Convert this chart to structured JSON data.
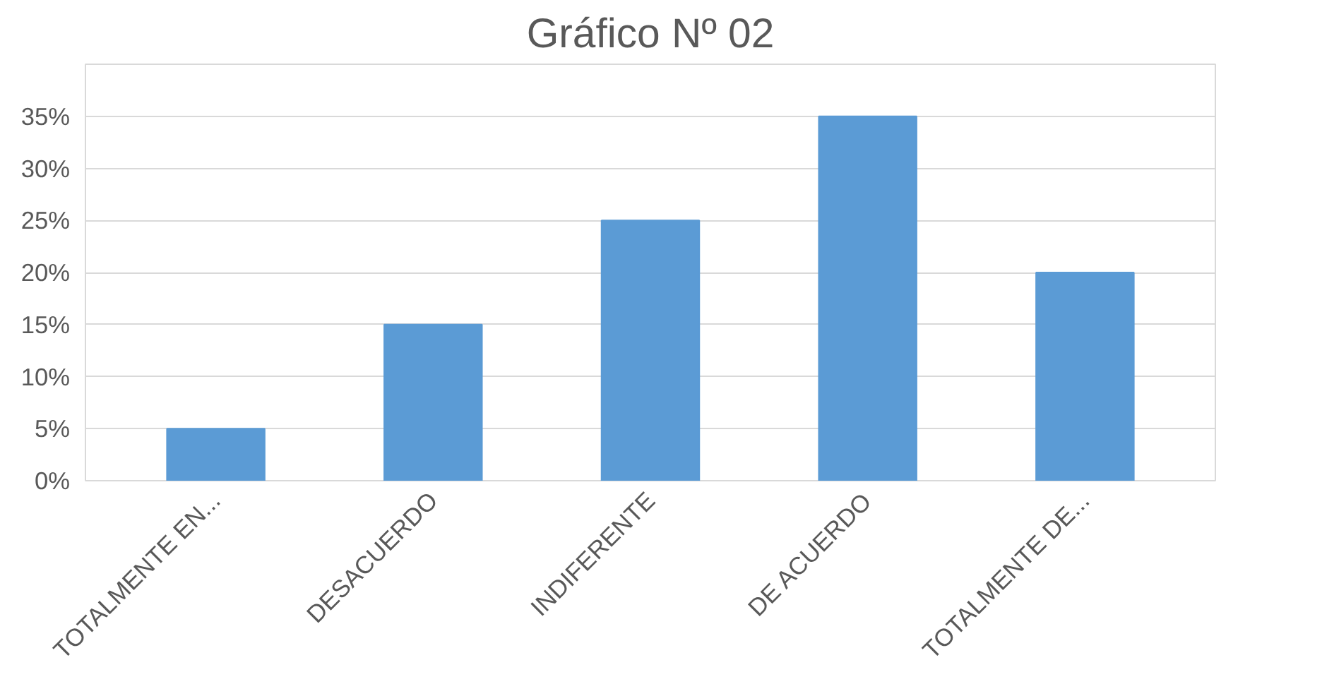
{
  "chart_data": {
    "type": "bar",
    "title": "Gráfico Nº 02",
    "categories": [
      "TOTALMENTE EN...",
      "DESACUERDO",
      "INDIFERENTE",
      "DE ACUERDO",
      "TOTALMENTE DE..."
    ],
    "values": [
      5,
      15,
      25,
      35,
      20
    ],
    "color": "#5b9bd5",
    "ylim": [
      0,
      40
    ],
    "yticks": [
      {
        "value": 0,
        "label": "0%"
      },
      {
        "value": 5,
        "label": "5%"
      },
      {
        "value": 10,
        "label": "10%"
      },
      {
        "value": 15,
        "label": "15%"
      },
      {
        "value": 20,
        "label": "20%"
      },
      {
        "value": 25,
        "label": "25%"
      },
      {
        "value": 30,
        "label": "30%"
      },
      {
        "value": 35,
        "label": "35%"
      },
      {
        "value": 40,
        "label": null
      }
    ],
    "grid": "y"
  }
}
